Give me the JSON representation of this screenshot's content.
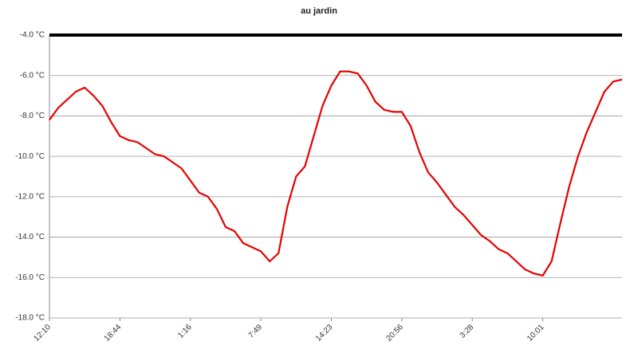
{
  "chart_data": {
    "type": "line",
    "title": "au jardin",
    "categories": [
      "12:10",
      null,
      null,
      null,
      null,
      null,
      null,
      null,
      "18:44",
      null,
      null,
      null,
      null,
      null,
      null,
      null,
      "1:16",
      null,
      null,
      null,
      null,
      null,
      null,
      null,
      "7:49",
      null,
      null,
      null,
      null,
      null,
      null,
      null,
      "14:23",
      null,
      null,
      null,
      null,
      null,
      null,
      null,
      "20:56",
      null,
      null,
      null,
      null,
      null,
      null,
      null,
      "3:28",
      null,
      null,
      null,
      null,
      null,
      null,
      null,
      "10:01",
      null,
      null,
      null,
      null,
      null,
      null,
      null,
      null,
      null
    ],
    "series": [
      {
        "name": "au jardin",
        "color": "#e60000",
        "values": [
          -8.2,
          -7.6,
          -7.2,
          -6.8,
          -6.6,
          -7.0,
          -7.5,
          -8.3,
          -9.0,
          -9.2,
          -9.3,
          -9.6,
          -9.9,
          -10.0,
          -10.3,
          -10.6,
          -11.2,
          -11.8,
          -12.0,
          -12.6,
          -13.5,
          -13.7,
          -14.3,
          -14.5,
          -14.7,
          -15.2,
          -14.8,
          -12.5,
          -11.0,
          -10.5,
          -9.0,
          -7.5,
          -6.5,
          -5.8,
          -5.8,
          -5.9,
          -6.5,
          -7.3,
          -7.7,
          -7.8,
          -7.8,
          -8.5,
          -9.8,
          -10.8,
          -11.3,
          -11.9,
          -12.5,
          -12.9,
          -13.4,
          -13.9,
          -14.2,
          -14.6,
          -14.8,
          -15.2,
          -15.6,
          -15.8,
          -15.9,
          -15.2,
          -13.3,
          -11.5,
          -10.0,
          -8.8,
          -7.8,
          -6.8,
          -6.3,
          -6.2
        ]
      }
    ],
    "ylim": [
      -18,
      -4
    ],
    "yticks": [
      {
        "value": -18,
        "label": "-18.0 °C"
      },
      {
        "value": -16,
        "label": "-16.0 °C"
      },
      {
        "value": -14,
        "label": "-14.0 °C"
      },
      {
        "value": -12,
        "label": "-12.0 °C"
      },
      {
        "value": -10,
        "label": "-10.0 °C"
      },
      {
        "value": -8,
        "label": "-8.0 °C"
      },
      {
        "value": -6,
        "label": "-6.0 °C"
      },
      {
        "value": -4,
        "label": "-4.0 °C"
      }
    ],
    "grid": true
  }
}
